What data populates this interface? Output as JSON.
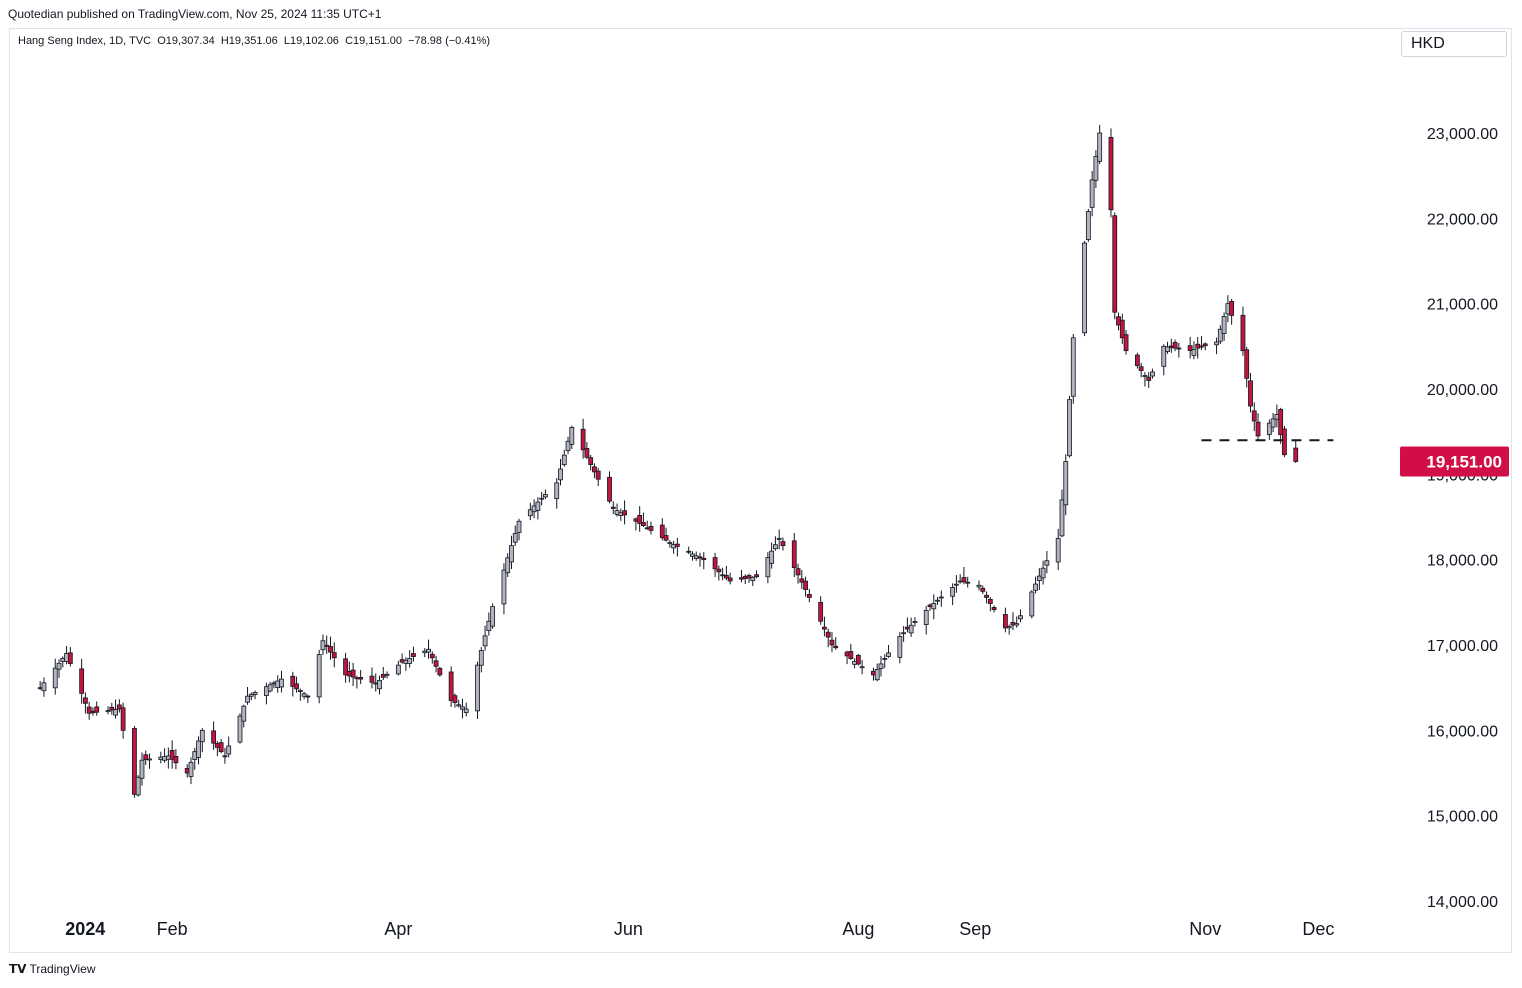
{
  "header": {
    "published_by": "Quotedian published on TradingView.com, Nov 25, 2024 11:35 UTC+1"
  },
  "legend": {
    "symbol": "Hang Seng Index, 1D, TVC",
    "open": "O19,307.34",
    "high": "H19,351.06",
    "low": "L19,102.06",
    "close": "C19,151.00",
    "change": "−78.98 (−0.41%)"
  },
  "currency": "HKD",
  "footer": {
    "brand": "TradingView",
    "logo": "tradingview-logo-icon"
  },
  "colors": {
    "down": "#c2153d",
    "up": "#b2b5be",
    "wick": "#131722",
    "last_price_bg": "#d10f46"
  },
  "chart_data": {
    "type": "candlestick",
    "title": "Hang Seng Index, 1D, TVC",
    "y_unit": "HKD",
    "ylim": [
      13750,
      23750
    ],
    "y_ticks": [
      {
        "value": 14000,
        "label": "14,000.00"
      },
      {
        "value": 15000,
        "label": "15,000.00"
      },
      {
        "value": 16000,
        "label": "16,000.00"
      },
      {
        "value": 17000,
        "label": "17,000.00"
      },
      {
        "value": 18000,
        "label": "18,000.00"
      },
      {
        "value": 19000,
        "label": "19,000.00"
      },
      {
        "value": 20000,
        "label": "20,000.00"
      },
      {
        "value": 21000,
        "label": "21,000.00"
      },
      {
        "value": 22000,
        "label": "22,000.00"
      },
      {
        "value": 23000,
        "label": "23,000.00"
      }
    ],
    "x_ticks": [
      {
        "date": "2024-01-01",
        "label": "2024",
        "bold": true
      },
      {
        "date": "2024-02-01",
        "label": "Feb",
        "bold": false
      },
      {
        "date": "2024-04-01",
        "label": "Apr",
        "bold": false
      },
      {
        "date": "2024-06-01",
        "label": "Jun",
        "bold": false
      },
      {
        "date": "2024-08-01",
        "label": "Aug",
        "bold": false
      },
      {
        "date": "2024-09-01",
        "label": "Sep",
        "bold": false
      },
      {
        "date": "2024-11-01",
        "label": "Nov",
        "bold": false
      },
      {
        "date": "2024-12-01",
        "label": "Dec",
        "bold": false
      }
    ],
    "xlim": [
      "2023-12-20",
      "2024-12-20"
    ],
    "last_price": {
      "value": 19151,
      "label": "19,151.00"
    },
    "horizontal_line": {
      "value": 19400,
      "style": "dashed",
      "from": "2024-10-31",
      "to": "2024-12-05"
    },
    "anchors": [
      {
        "date": "2023-12-28",
        "close": 16500
      },
      {
        "date": "2024-01-04",
        "close": 16900
      },
      {
        "date": "2024-01-10",
        "close": 16200
      },
      {
        "date": "2024-01-18",
        "close": 16250
      },
      {
        "date": "2024-01-22",
        "close": 15250
      },
      {
        "date": "2024-01-24",
        "close": 15650
      },
      {
        "date": "2024-01-31",
        "close": 15700
      },
      {
        "date": "2024-02-05",
        "close": 15500
      },
      {
        "date": "2024-02-09",
        "close": 16000
      },
      {
        "date": "2024-02-15",
        "close": 15700
      },
      {
        "date": "2024-02-21",
        "close": 16400
      },
      {
        "date": "2024-03-01",
        "close": 16600
      },
      {
        "date": "2024-03-08",
        "close": 16400
      },
      {
        "date": "2024-03-12",
        "close": 17050
      },
      {
        "date": "2024-03-18",
        "close": 16650
      },
      {
        "date": "2024-03-26",
        "close": 16550
      },
      {
        "date": "2024-04-02",
        "close": 16800
      },
      {
        "date": "2024-04-09",
        "close": 16950
      },
      {
        "date": "2024-04-15",
        "close": 16350
      },
      {
        "date": "2024-04-19",
        "close": 16250
      },
      {
        "date": "2024-04-26",
        "close": 17450
      },
      {
        "date": "2024-05-03",
        "close": 18450
      },
      {
        "date": "2024-05-13",
        "close": 18900
      },
      {
        "date": "2024-05-17",
        "close": 19550
      },
      {
        "date": "2024-05-21",
        "close": 19200
      },
      {
        "date": "2024-05-28",
        "close": 18600
      },
      {
        "date": "2024-06-05",
        "close": 18400
      },
      {
        "date": "2024-06-12",
        "close": 18200
      },
      {
        "date": "2024-06-21",
        "close": 18000
      },
      {
        "date": "2024-06-28",
        "close": 17750
      },
      {
        "date": "2024-07-05",
        "close": 17800
      },
      {
        "date": "2024-07-11",
        "close": 18250
      },
      {
        "date": "2024-07-18",
        "close": 17650
      },
      {
        "date": "2024-07-25",
        "close": 17000
      },
      {
        "date": "2024-08-05",
        "close": 16650
      },
      {
        "date": "2024-08-12",
        "close": 17100
      },
      {
        "date": "2024-08-20",
        "close": 17450
      },
      {
        "date": "2024-08-28",
        "close": 17750
      },
      {
        "date": "2024-09-02",
        "close": 17700
      },
      {
        "date": "2024-09-09",
        "close": 17200
      },
      {
        "date": "2024-09-12",
        "close": 17250
      },
      {
        "date": "2024-09-19",
        "close": 17900
      },
      {
        "date": "2024-09-23",
        "close": 18250
      },
      {
        "date": "2024-09-25",
        "close": 19150
      },
      {
        "date": "2024-09-27",
        "close": 20600
      },
      {
        "date": "2024-10-02",
        "close": 22450
      },
      {
        "date": "2024-10-04",
        "close": 23000
      },
      {
        "date": "2024-10-07",
        "close": 22100
      },
      {
        "date": "2024-10-08",
        "close": 20900
      },
      {
        "date": "2024-10-11",
        "close": 20450
      },
      {
        "date": "2024-10-17",
        "close": 20100
      },
      {
        "date": "2024-10-21",
        "close": 20500
      },
      {
        "date": "2024-10-28",
        "close": 20450
      },
      {
        "date": "2024-11-04",
        "close": 20550
      },
      {
        "date": "2024-11-07",
        "close": 21000
      },
      {
        "date": "2024-11-11",
        "close": 20450
      },
      {
        "date": "2024-11-13",
        "close": 19800
      },
      {
        "date": "2024-11-15",
        "close": 19450
      },
      {
        "date": "2024-11-20",
        "close": 19700
      },
      {
        "date": "2024-11-22",
        "close": 19230
      },
      {
        "date": "2024-11-25",
        "close": 19151
      }
    ]
  }
}
